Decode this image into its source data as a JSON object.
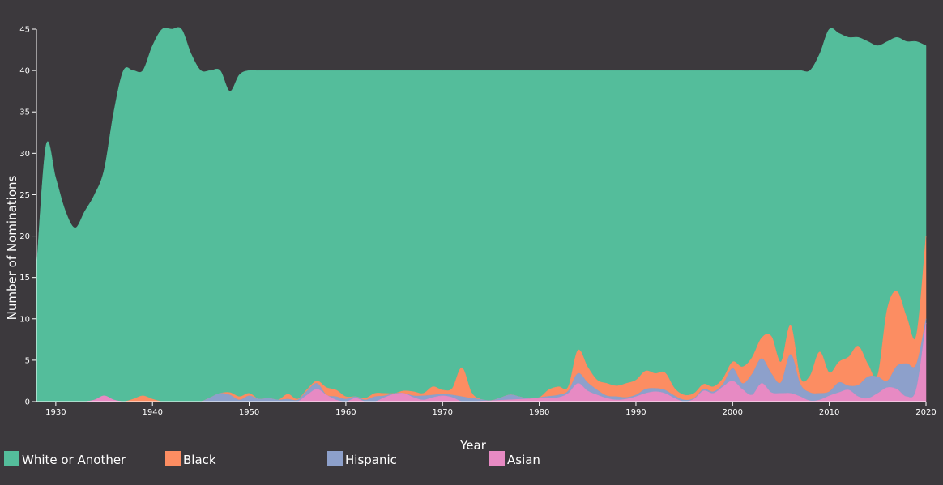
{
  "chart_data": {
    "type": "area",
    "stacked": true,
    "xlabel": "Year",
    "ylabel": "Number of Nominations",
    "xlim": [
      1928,
      2020
    ],
    "ylim": [
      0,
      45
    ],
    "x_ticks": [
      1930,
      1940,
      1950,
      1960,
      1970,
      1980,
      1990,
      2000,
      2010,
      2020
    ],
    "y_ticks": [
      0,
      5,
      10,
      15,
      20,
      25,
      30,
      35,
      40,
      45
    ],
    "legend_position": "bottom",
    "grid": false,
    "total": {
      "x": [
        1928,
        1929,
        1930,
        1931,
        1932,
        1933,
        1934,
        1935,
        1936,
        1937,
        1938,
        1939,
        1940,
        1941,
        1942,
        1943,
        1944,
        1945,
        1946,
        1947,
        1948,
        1949,
        1950,
        1980,
        1990,
        2000,
        2007,
        2008,
        2009,
        2010,
        2011,
        2012,
        2013,
        2014,
        2015,
        2016,
        2017,
        2018,
        2019,
        2020
      ],
      "y": [
        16,
        31,
        27,
        23,
        21,
        23,
        25,
        28,
        35,
        40,
        40,
        40,
        43,
        45,
        45,
        45,
        42,
        40,
        40,
        40,
        37.5,
        39.5,
        40,
        40,
        40,
        40,
        40,
        40,
        42,
        45,
        44.5,
        44,
        44,
        43.5,
        43,
        43.5,
        44,
        43.5,
        43.5,
        43
      ]
    },
    "series": [
      {
        "name": "Asian",
        "color": "#e78ac3",
        "x": [
          1928,
          1933,
          1934,
          1935,
          1936,
          1937,
          1955,
          1956,
          1957,
          1958,
          1959,
          1960,
          1961,
          1962,
          1963,
          1964,
          1965,
          1966,
          1967,
          1968,
          1969,
          1970,
          1971,
          1972,
          1973,
          1982,
          1983,
          1984,
          1985,
          1986,
          1987,
          1988,
          1989,
          1990,
          1991,
          1992,
          1993,
          1994,
          1995,
          1996,
          1997,
          1998,
          1999,
          2000,
          2001,
          2002,
          2003,
          2004,
          2005,
          2006,
          2007,
          2008,
          2009,
          2010,
          2011,
          2012,
          2013,
          2014,
          2015,
          2016,
          2017,
          2018,
          2019,
          2020
        ],
        "values": [
          0,
          0,
          0.2,
          0.7,
          0.2,
          0,
          0,
          0.8,
          1.5,
          0.8,
          0.2,
          0,
          0.4,
          0,
          0,
          0.5,
          0.9,
          1,
          0.5,
          0.2,
          0.5,
          0.7,
          0.5,
          0,
          0,
          0.5,
          1,
          2.2,
          1.3,
          0.8,
          0.4,
          0.2,
          0.3,
          0.6,
          1,
          1.2,
          1,
          0.4,
          0,
          0.3,
          1.3,
          1,
          1.8,
          2.5,
          1.5,
          0.8,
          2.2,
          1.1,
          1,
          1,
          0.6,
          0.1,
          0.2,
          0.7,
          1.1,
          1.4,
          0.6,
          0.4,
          1,
          1.7,
          1.5,
          0.6,
          1.5,
          9.5
        ]
      },
      {
        "name": "Hispanic",
        "color": "#8da0cb",
        "x": [
          1928,
          1945,
          1946,
          1947,
          1948,
          1949,
          1950,
          1951,
          1952,
          1953,
          1954,
          1955,
          1956,
          1957,
          1958,
          1959,
          1960,
          1961,
          1962,
          1963,
          1964,
          1965,
          1966,
          1967,
          1968,
          1969,
          1970,
          1971,
          1972,
          1973,
          1974,
          1975,
          1976,
          1977,
          1978,
          1979,
          1982,
          1983,
          1984,
          1985,
          1986,
          1987,
          1988,
          1989,
          1990,
          1991,
          1992,
          1993,
          1994,
          1995,
          1996,
          1997,
          1998,
          1999,
          2000,
          2001,
          2002,
          2003,
          2004,
          2005,
          2006,
          2007,
          2008,
          2009,
          2010,
          2011,
          2012,
          2013,
          2014,
          2015,
          2016,
          2017,
          2018,
          2019,
          2020
        ],
        "values": [
          0,
          0,
          0.5,
          1,
          0.8,
          0.2,
          0.7,
          0.3,
          0.4,
          0.2,
          0.3,
          0.2,
          0.5,
          0.7,
          0,
          0.4,
          0.3,
          0.2,
          0.2,
          0.6,
          0.2,
          0.1,
          0,
          0.2,
          0.5,
          0.3,
          0.2,
          0.3,
          0.6,
          0.4,
          0.2,
          0,
          0.3,
          0.6,
          0.3,
          0,
          0.3,
          0.3,
          1.2,
          1,
          0.6,
          0.3,
          0.4,
          0.2,
          0.2,
          0.5,
          0.4,
          0.4,
          0.3,
          0.2,
          0.1,
          0.2,
          0.2,
          0.3,
          1.5,
          0.7,
          2.5,
          3,
          2.3,
          1.3,
          4.7,
          1.5,
          1,
          0.8,
          0.5,
          1.2,
          0.5,
          1.4,
          2.6,
          2,
          0.8,
          2.8,
          4,
          3,
          0.5
        ]
      },
      {
        "name": "Black",
        "color": "#fc8d62",
        "x": [
          1928,
          1937,
          1938,
          1939,
          1940,
          1941,
          1947,
          1948,
          1949,
          1950,
          1951,
          1952,
          1953,
          1954,
          1955,
          1956,
          1957,
          1958,
          1959,
          1960,
          1961,
          1962,
          1963,
          1964,
          1965,
          1966,
          1967,
          1968,
          1969,
          1970,
          1971,
          1972,
          1973,
          1974,
          1975,
          1980,
          1981,
          1982,
          1983,
          1984,
          1985,
          1986,
          1987,
          1988,
          1989,
          1990,
          1991,
          1992,
          1993,
          1994,
          1995,
          1996,
          1997,
          1998,
          1999,
          2000,
          2001,
          2002,
          2003,
          2004,
          2005,
          2006,
          2007,
          2008,
          2009,
          2010,
          2011,
          2012,
          2013,
          2014,
          2015,
          2016,
          2017,
          2018,
          2019,
          2020
        ],
        "values": [
          0,
          0,
          0.3,
          0.7,
          0.3,
          0,
          0,
          0.3,
          0.4,
          0.3,
          0,
          0,
          0,
          0.6,
          0.1,
          0.2,
          0.3,
          0.9,
          0.8,
          0.3,
          0,
          0.2,
          0.4,
          0.3,
          0,
          0.3,
          0.5,
          0.3,
          1,
          0.5,
          0.8,
          3.5,
          0.7,
          0,
          0,
          0,
          0.8,
          1,
          0.5,
          2.8,
          1.9,
          1.2,
          1.5,
          1.3,
          1.7,
          1.8,
          2.2,
          1.8,
          2.1,
          0.9,
          0.6,
          0.6,
          0.6,
          0.6,
          0.7,
          0.8,
          2,
          2,
          2.5,
          4.5,
          2.5,
          3.5,
          0.8,
          2,
          5,
          2.3,
          2.5,
          3.5,
          4.7,
          1.5,
          0.2,
          8.7,
          9,
          5.6,
          3.5,
          10
        ]
      },
      {
        "name": "White or Another",
        "color": "#54bd9b",
        "computed": "total minus other series"
      }
    ]
  }
}
